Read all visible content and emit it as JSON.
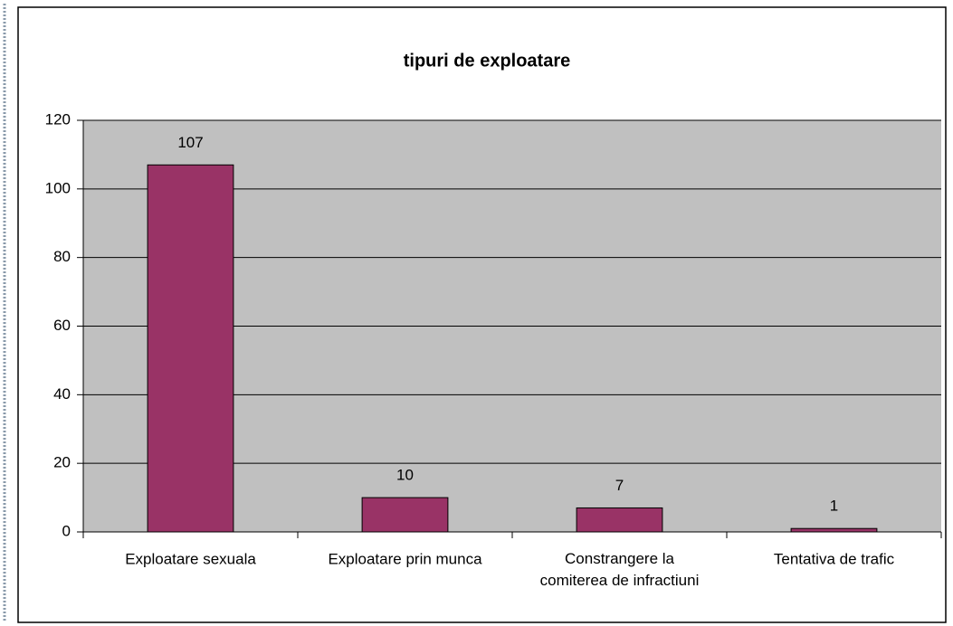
{
  "chart_data": {
    "type": "bar",
    "title": "tipuri de exploatare",
    "categories": [
      "Exploatare sexuala",
      "Exploatare prin munca",
      "Constrangere la comiterea de infractiuni",
      "Tentativa de trafic"
    ],
    "values": [
      107,
      10,
      7,
      1
    ],
    "color": "#993366",
    "ylim": [
      0,
      120
    ],
    "yticks": [
      0,
      20,
      40,
      60,
      80,
      100,
      120
    ],
    "grid": true
  }
}
